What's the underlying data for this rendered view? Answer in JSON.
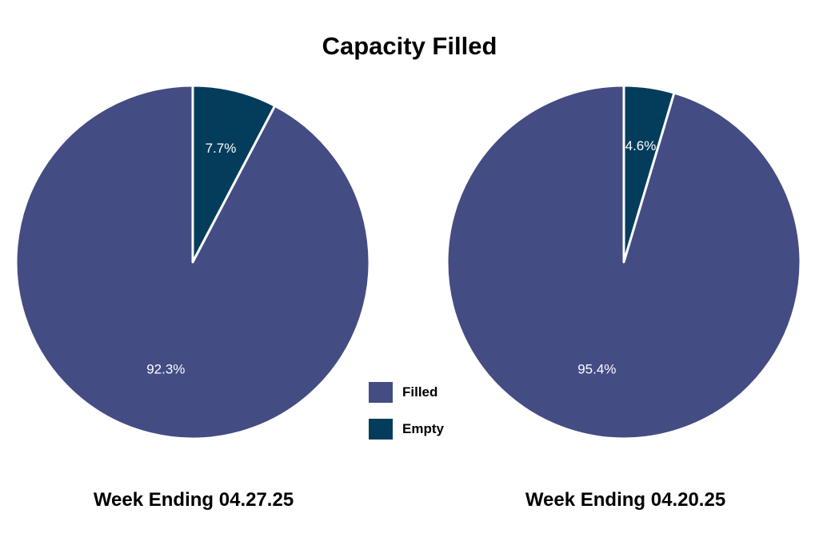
{
  "title": "Capacity Filled",
  "colors": {
    "filled": "#444c84",
    "empty": "#033d5b",
    "separator": "#ffffff"
  },
  "legend": {
    "placement": "center-bottom",
    "items": [
      {
        "label": "Filled",
        "color": "#444c84"
      },
      {
        "label": "Empty",
        "color": "#033d5b"
      }
    ]
  },
  "chart_data": [
    {
      "type": "pie",
      "caption": "Week Ending 04.27.25",
      "slices": [
        {
          "name": "Empty",
          "value": 7.7,
          "label": "7.7%"
        },
        {
          "name": "Filled",
          "value": 92.3,
          "label": "92.3%"
        }
      ]
    },
    {
      "type": "pie",
      "caption": "Week Ending 04.20.25",
      "slices": [
        {
          "name": "Empty",
          "value": 4.6,
          "label": "4.6%"
        },
        {
          "name": "Filled",
          "value": 95.4,
          "label": "95.4%"
        }
      ]
    }
  ]
}
